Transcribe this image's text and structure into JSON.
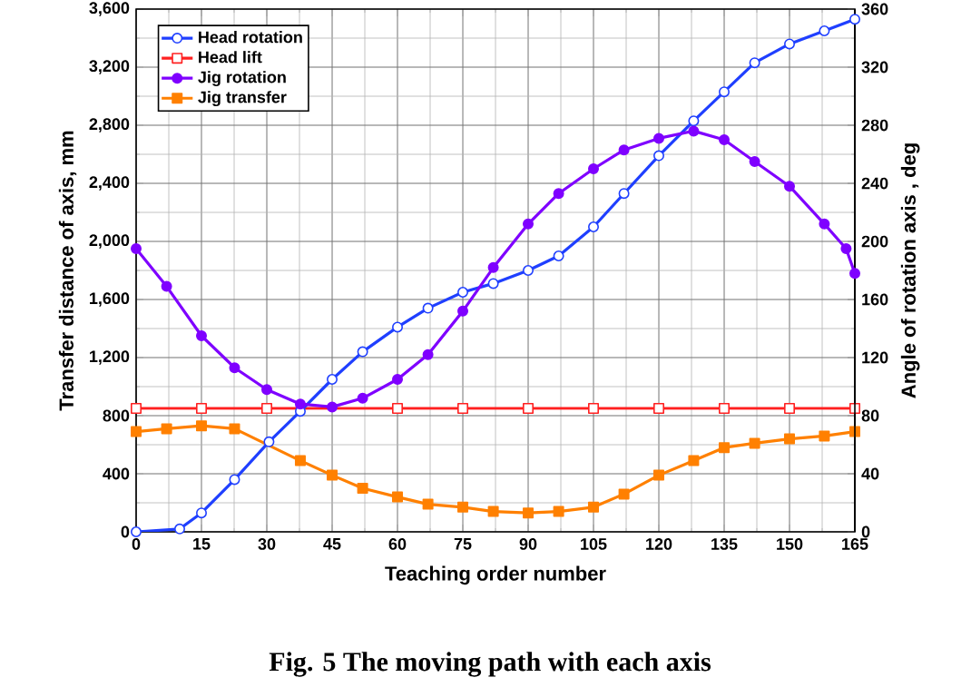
{
  "chart_data": {
    "type": "line",
    "xlabel": "Teaching order number",
    "ylabel": "Transfer distance of axis, mm",
    "y2label": "Angle of rotation axis , deg",
    "annotations": [
      "Fig. 5 The moving path with each axis"
    ],
    "xlim": [
      0,
      165
    ],
    "xticks": [
      0,
      15,
      30,
      45,
      60,
      75,
      90,
      105,
      120,
      135,
      150,
      165
    ],
    "ylim": [
      0,
      3600
    ],
    "yticks": [
      0,
      400,
      800,
      {
        "value": 1200,
        "label": "1,200"
      },
      {
        "value": 1600,
        "label": "1,600"
      },
      {
        "value": 2000,
        "label": "2,000"
      },
      {
        "value": 2400,
        "label": "2,400"
      },
      {
        "value": 2800,
        "label": "2,800"
      },
      {
        "value": 3200,
        "label": "3,200"
      },
      {
        "value": 3600,
        "label": "3,600"
      }
    ],
    "y2lim": [
      0,
      360
    ],
    "y2ticks": [
      0,
      40,
      80,
      120,
      160,
      200,
      240,
      280,
      320,
      360
    ],
    "grid": true,
    "legend": "top left",
    "line_style": "solid",
    "series": [
      {
        "name": "Head rotation",
        "color": "#1f3fff",
        "axis": "y2",
        "marker": "circle",
        "x": [
          0,
          10,
          15,
          22.6,
          30.5,
          37.7,
          45,
          52,
          60,
          67,
          75,
          82,
          90,
          97,
          105,
          112,
          120,
          128,
          135,
          142,
          150,
          158,
          165
        ],
        "values": [
          0,
          2,
          13,
          36,
          62,
          83,
          105,
          124,
          141,
          154,
          165,
          171,
          180,
          190,
          210,
          233,
          259,
          283,
          303,
          323,
          336,
          345,
          353
        ]
      },
      {
        "name": "Head lift",
        "color": "#ff2020",
        "marker": "square",
        "x": [
          0,
          15,
          30,
          60,
          75,
          90,
          105,
          120,
          135,
          150,
          165
        ],
        "values": [
          850,
          850,
          850,
          850,
          850,
          850,
          850,
          850,
          850,
          850,
          850
        ]
      },
      {
        "name": "Jig rotation",
        "color": "#7f00ff",
        "axis": "y2",
        "marker": "circle",
        "x": [
          0,
          7,
          15,
          22.6,
          30,
          37.7,
          45,
          52,
          60,
          67,
          75,
          82,
          90,
          97,
          105,
          112,
          120,
          128,
          135,
          142,
          150,
          158,
          163,
          165
        ],
        "values": [
          195,
          169,
          135,
          113,
          98,
          88,
          86,
          92,
          105,
          122,
          152,
          182,
          212,
          233,
          250,
          263,
          271,
          276,
          270,
          255,
          238,
          212,
          195,
          178
        ]
      },
      {
        "name": "Jig transfer",
        "color": "#ff8000",
        "marker": "square",
        "x": [
          0,
          7,
          15,
          22.6,
          37.7,
          45,
          52,
          60,
          67,
          75,
          82,
          90,
          97,
          105,
          112,
          120,
          128,
          135,
          142,
          150,
          158,
          165
        ],
        "values": [
          690,
          710,
          730,
          710,
          490,
          390,
          300,
          240,
          190,
          170,
          140,
          130,
          140,
          170,
          260,
          390,
          490,
          580,
          610,
          640,
          660,
          690
        ]
      }
    ]
  }
}
